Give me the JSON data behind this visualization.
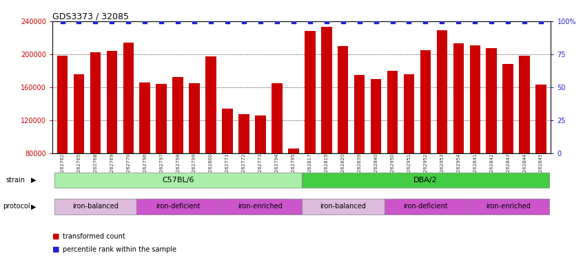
{
  "title": "GDS3373 / 32085",
  "samples": [
    "GSM262762",
    "GSM262765",
    "GSM262768",
    "GSM262769",
    "GSM262770",
    "GSM262796",
    "GSM262797",
    "GSM262798",
    "GSM262799",
    "GSM262800",
    "GSM262771",
    "GSM262772",
    "GSM262773",
    "GSM262794",
    "GSM262795",
    "GSM262817",
    "GSM262819",
    "GSM262820",
    "GSM262839",
    "GSM262840",
    "GSM262950",
    "GSM262951",
    "GSM262952",
    "GSM262953",
    "GSM262954",
    "GSM262841",
    "GSM262842",
    "GSM262843",
    "GSM262844",
    "GSM262845"
  ],
  "values": [
    198000,
    176000,
    202000,
    204000,
    214000,
    166000,
    164000,
    172000,
    165000,
    197000,
    134000,
    127000,
    126000,
    165000,
    86000,
    228000,
    233000,
    210000,
    175000,
    170000,
    180000,
    176000,
    205000,
    229000,
    213000,
    211000,
    207000,
    188000,
    198000,
    163000
  ],
  "bar_color": "#cc0000",
  "dot_color": "#2222cc",
  "ylim_left": [
    80000,
    240000
  ],
  "ylim_right": [
    0,
    100
  ],
  "yticks_left": [
    80000,
    120000,
    160000,
    200000,
    240000
  ],
  "yticks_right": [
    0,
    25,
    50,
    75,
    100
  ],
  "strains": [
    {
      "label": "C57BL/6",
      "start": 0,
      "end": 15,
      "color": "#aaeeaa"
    },
    {
      "label": "DBA/2",
      "start": 15,
      "end": 30,
      "color": "#44cc44"
    }
  ],
  "protocols": [
    {
      "label": "iron-balanced",
      "start": 0,
      "end": 5,
      "color": "#ddbbdd"
    },
    {
      "label": "iron-deficient",
      "start": 5,
      "end": 10,
      "color": "#cc55cc"
    },
    {
      "label": "iron-enriched",
      "start": 10,
      "end": 15,
      "color": "#cc55cc"
    },
    {
      "label": "iron-balanced",
      "start": 15,
      "end": 20,
      "color": "#ddbbdd"
    },
    {
      "label": "iron-deficient",
      "start": 20,
      "end": 25,
      "color": "#cc55cc"
    },
    {
      "label": "iron-enriched",
      "start": 25,
      "end": 30,
      "color": "#cc55cc"
    }
  ],
  "background_color": "#ffffff",
  "dotted_lines": [
    120000,
    160000,
    200000
  ]
}
